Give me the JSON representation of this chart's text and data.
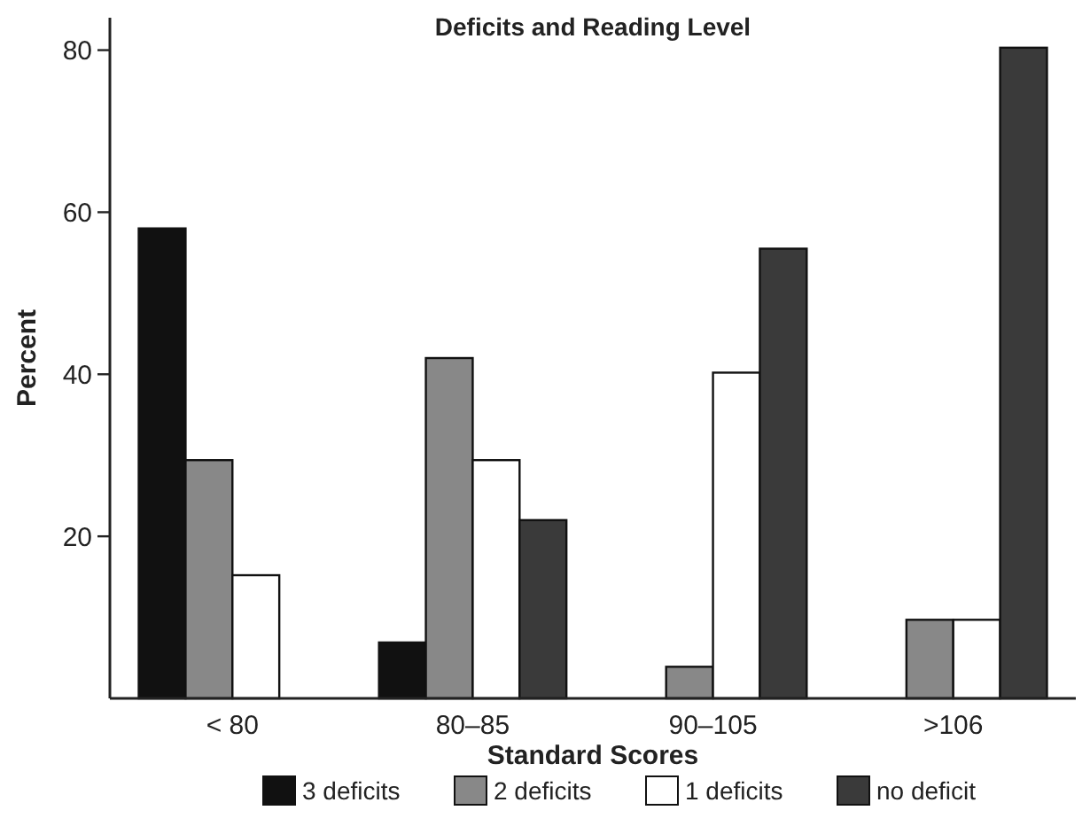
{
  "chart_data": {
    "type": "bar",
    "title": "Deficits and Reading Level",
    "xlabel": "Standard Scores",
    "ylabel": "Percent",
    "categories": [
      "< 80",
      "80–85",
      "90–105",
      ">106"
    ],
    "series": [
      {
        "name": "3 deficits",
        "color": "#111111",
        "values": [
          58,
          6.9,
          0,
          0
        ]
      },
      {
        "name": "2 deficits",
        "color": "#888888",
        "values": [
          29.4,
          42,
          3.9,
          9.7
        ]
      },
      {
        "name": "1 deficits",
        "color": "#ffffff",
        "values": [
          15.2,
          29.4,
          40.2,
          9.7
        ]
      },
      {
        "name": "no deficit",
        "color": "#3a3a3a",
        "values": [
          0,
          22,
          55.5,
          80.3
        ]
      }
    ],
    "ylim": [
      0,
      84
    ],
    "yticks": [
      20,
      40,
      60,
      80
    ],
    "grid": false,
    "legend": "bottom"
  }
}
